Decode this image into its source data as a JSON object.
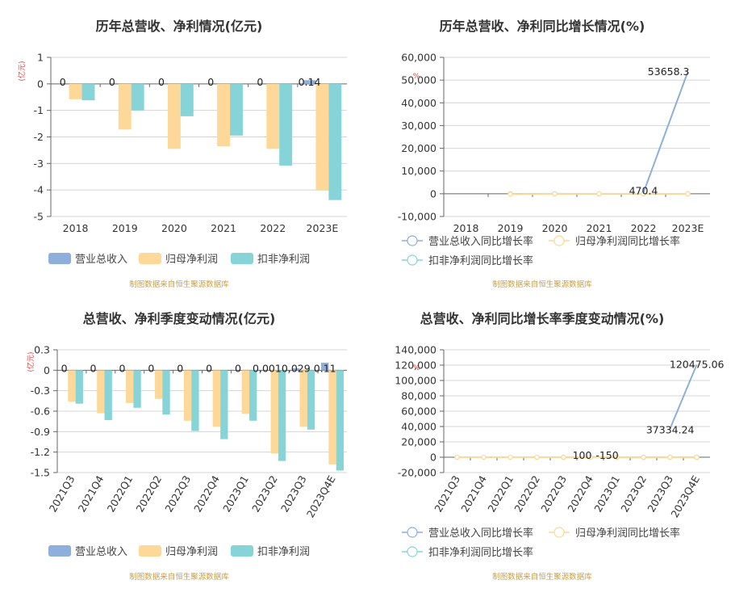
{
  "chart_data": [
    {
      "id": "c1",
      "type": "bar",
      "title": "历年总营收、净利情况(亿元)",
      "unit_label": "(亿元)",
      "categories": [
        "2018",
        "2019",
        "2020",
        "2021",
        "2022",
        "2023E"
      ],
      "ylim": [
        -5,
        1
      ],
      "yticks": [
        1,
        0,
        -1,
        -2,
        -3,
        -4,
        -5
      ],
      "series": [
        {
          "name": "营业总收入",
          "color": "#8eaedb",
          "values": [
            0,
            0,
            0,
            0,
            0,
            0.14
          ]
        },
        {
          "name": "归母净利润",
          "color": "#fdd898",
          "values": [
            -0.58,
            -1.72,
            -2.45,
            -2.35,
            -2.45,
            -4.02
          ]
        },
        {
          "name": "扣非净利润",
          "color": "#87d4d8",
          "values": [
            -0.62,
            -1.0,
            -1.22,
            -1.95,
            -3.08,
            -4.38
          ]
        }
      ],
      "data_labels": [
        "0",
        "0",
        "0",
        "0",
        "0",
        "0.14"
      ],
      "grid": true,
      "legend": "bottom",
      "source": "制图数据来自恒生聚源数据库"
    },
    {
      "id": "c2",
      "type": "line",
      "title": "历年总营收、净利同比增长情况(%)",
      "unit_label": "%",
      "categories": [
        "2018",
        "2019",
        "2020",
        "2021",
        "2022",
        "2023E"
      ],
      "ylim": [
        -10000,
        60000
      ],
      "yticks": [
        "60,000",
        "50,000",
        "40,000",
        "30,000",
        "20,000",
        "10,000",
        "0",
        "-10,000"
      ],
      "ytick_values": [
        60000,
        50000,
        40000,
        30000,
        20000,
        10000,
        0,
        -10000
      ],
      "series": [
        {
          "name": "营业总收入同比增长率",
          "color": "#8eaedb",
          "values": [
            null,
            null,
            null,
            null,
            470.4,
            53658.3
          ]
        },
        {
          "name": "归母净利润同比增长率",
          "color": "#fdd898",
          "values": [
            null,
            -196,
            -42,
            4,
            -4,
            -64
          ]
        },
        {
          "name": "扣非净利润同比增长率",
          "color": "#87d4d8",
          "values": [
            null,
            -61,
            -22,
            -60,
            -58,
            -42
          ]
        }
      ],
      "annotations": [
        {
          "text": "53658.3",
          "x": "2023E",
          "y": 53658.3
        },
        {
          "text": "470.4",
          "x": "2022",
          "y": 470.4
        }
      ],
      "grid": true,
      "legend": "bottom",
      "source": "制图数据来自恒生聚源数据库"
    },
    {
      "id": "c3",
      "type": "bar",
      "title": "总营收、净利季度变动情况(亿元)",
      "unit_label": "(亿元)",
      "categories": [
        "2021Q3",
        "2021Q4",
        "2022Q1",
        "2022Q2",
        "2022Q3",
        "2022Q4",
        "2023Q1",
        "2023Q2",
        "2023Q3",
        "2023Q4E"
      ],
      "ylim": [
        -1.5,
        0.3
      ],
      "yticks": [
        "0.3",
        "0",
        "-0.3",
        "-0.6",
        "-0.9",
        "-1.2",
        "-1.5"
      ],
      "ytick_values": [
        0.3,
        0,
        -0.3,
        -0.6,
        -0.9,
        -1.2,
        -1.5
      ],
      "series": [
        {
          "name": "营业总收入",
          "color": "#8eaedb",
          "values": [
            0,
            0,
            0,
            0,
            0,
            0,
            0,
            0.001,
            0.029,
            0.11
          ]
        },
        {
          "name": "归母净利润",
          "color": "#fdd898",
          "values": [
            -0.46,
            -0.63,
            -0.48,
            -0.42,
            -0.74,
            -0.83,
            -0.64,
            -1.22,
            -0.83,
            -1.38
          ]
        },
        {
          "name": "扣非净利润",
          "color": "#87d4d8",
          "values": [
            -0.49,
            -0.73,
            -0.55,
            -0.65,
            -0.89,
            -1.01,
            -0.74,
            -1.33,
            -0.87,
            -1.47
          ]
        }
      ],
      "data_labels": [
        "0",
        "0",
        "0",
        "0",
        "0",
        "0",
        "0",
        "0.001",
        "0.029",
        "0.11"
      ],
      "grid": true,
      "legend": "bottom",
      "source": "制图数据来自恒生聚源数据库"
    },
    {
      "id": "c4",
      "type": "line",
      "title": "总营收、净利同比增长率季度变动情况(%)",
      "unit_label": "%",
      "categories": [
        "2021Q3",
        "2021Q4",
        "2022Q1",
        "2022Q2",
        "2022Q3",
        "2022Q4",
        "2023Q1",
        "2023Q2",
        "2023Q3",
        "2023Q4E"
      ],
      "ylim": [
        -20000,
        140000
      ],
      "yticks": [
        "140,000",
        "120,000",
        "100,000",
        "80,000",
        "60,000",
        "40,000",
        "20,000",
        "0",
        "-20,000"
      ],
      "ytick_values": [
        140000,
        120000,
        100000,
        80000,
        60000,
        40000,
        20000,
        0,
        -20000
      ],
      "series": [
        {
          "name": "营业总收入同比增长率",
          "color": "#8eaedb",
          "values": [
            null,
            null,
            null,
            null,
            null,
            null,
            null,
            null,
            37334.24,
            120475.06
          ]
        },
        {
          "name": "归母净利润同比增长率",
          "color": "#fdd898",
          "values": [
            -30,
            -40,
            -20,
            10,
            -60,
            -30,
            -40,
            -150,
            -10,
            -66
          ]
        },
        {
          "name": "扣非净利润同比增长率",
          "color": "#87d4d8",
          "values": [
            null,
            null,
            null,
            null,
            -80,
            100,
            -150,
            -100,
            -5,
            -70
          ]
        }
      ],
      "annotations": [
        {
          "text": "120475.06",
          "x": "2023Q4E",
          "y": 120475.06
        },
        {
          "text": "37334.24",
          "x": "2023Q3",
          "y": 37334.24
        },
        {
          "text": "100",
          "x": "2022Q4",
          "y": 100
        },
        {
          "text": "-150",
          "x": "2023Q1",
          "y": -150
        }
      ],
      "grid": true,
      "legend": "bottom",
      "source": "制图数据来自恒生聚源数据库"
    }
  ]
}
